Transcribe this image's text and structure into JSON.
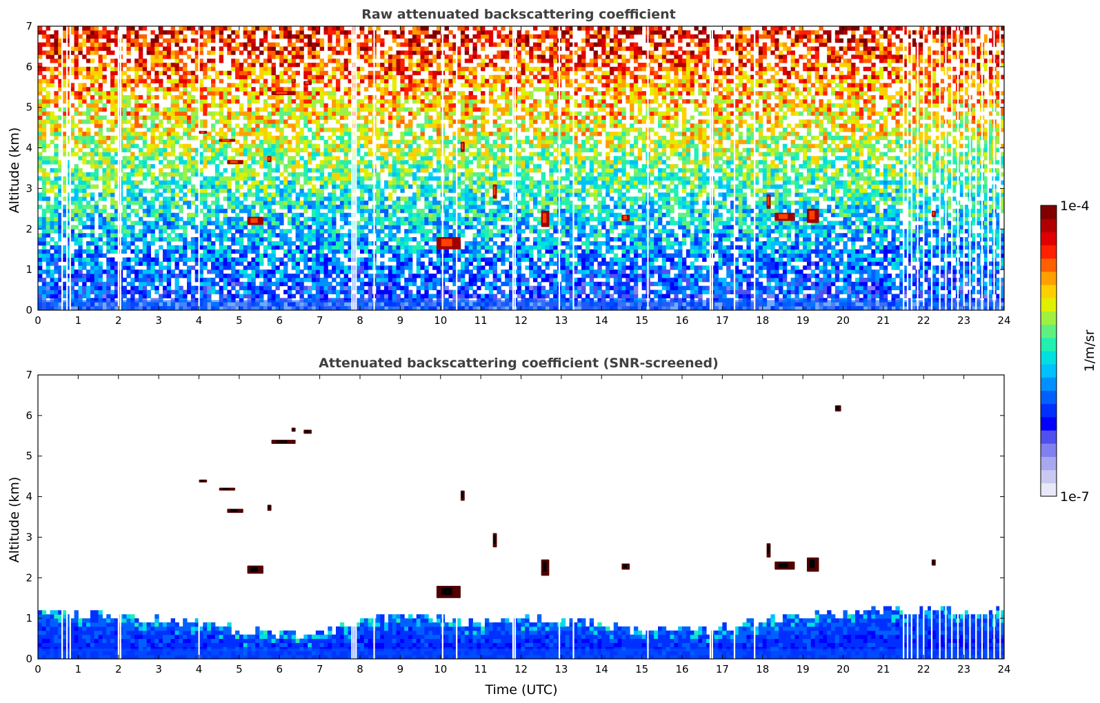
{
  "chart_data": [
    {
      "type": "heatmap",
      "title": "Raw attenuated backscattering coefficient",
      "xlabel": "",
      "ylabel": "Altitude (km)",
      "xlim": [
        0,
        24
      ],
      "ylim": [
        0,
        7
      ],
      "xticks": [
        "0",
        "1",
        "2",
        "3",
        "4",
        "5",
        "6",
        "7",
        "8",
        "9",
        "10",
        "11",
        "12",
        "13",
        "14",
        "15",
        "16",
        "17",
        "18",
        "19",
        "20",
        "21",
        "22",
        "23",
        "24"
      ],
      "yticks": [
        "0",
        "1",
        "2",
        "3",
        "4",
        "5",
        "6",
        "7"
      ],
      "scale": "log",
      "colormap": "jet",
      "value_range": [
        1e-07,
        0.0001
      ],
      "boundary_layer_top_km": 0.5,
      "gap_times_utc": [
        0.6,
        0.72,
        0.8,
        2.0,
        2.05,
        4.0,
        7.8,
        7.85,
        7.9,
        8.35,
        10.05,
        10.4,
        11.8,
        11.85,
        12.95,
        13.3,
        15.15,
        16.7,
        16.75,
        17.3,
        17.8,
        21.5,
        21.6,
        21.7,
        21.85,
        22.0,
        22.2,
        22.4,
        22.55,
        22.7,
        22.85,
        23.0,
        23.15,
        23.3,
        23.45,
        23.6,
        23.75,
        23.9
      ],
      "cloud_features": [
        {
          "t0": 5.2,
          "t1": 5.6,
          "z0": 2.1,
          "z1": 2.3
        },
        {
          "t0": 5.8,
          "t1": 6.4,
          "z0": 5.3,
          "z1": 5.4
        },
        {
          "t0": 6.3,
          "t1": 6.4,
          "z0": 5.6,
          "z1": 5.7
        },
        {
          "t0": 6.6,
          "t1": 6.8,
          "z0": 5.55,
          "z1": 5.65
        },
        {
          "t0": 4.0,
          "t1": 4.2,
          "z0": 4.35,
          "z1": 4.42
        },
        {
          "t0": 4.5,
          "t1": 4.9,
          "z0": 4.15,
          "z1": 4.22
        },
        {
          "t0": 4.7,
          "t1": 5.1,
          "z0": 3.6,
          "z1": 3.7
        },
        {
          "t0": 5.7,
          "t1": 5.8,
          "z0": 3.65,
          "z1": 3.8
        },
        {
          "t0": 9.9,
          "t1": 10.5,
          "z0": 1.5,
          "z1": 1.8
        },
        {
          "t0": 10.5,
          "t1": 10.6,
          "z0": 3.9,
          "z1": 4.15
        },
        {
          "t0": 11.3,
          "t1": 11.4,
          "z0": 2.75,
          "z1": 3.1
        },
        {
          "t0": 12.5,
          "t1": 12.7,
          "z0": 2.05,
          "z1": 2.45
        },
        {
          "t0": 14.5,
          "t1": 14.7,
          "z0": 2.2,
          "z1": 2.35
        },
        {
          "t0": 18.1,
          "t1": 18.2,
          "z0": 2.5,
          "z1": 2.85
        },
        {
          "t0": 18.3,
          "t1": 18.8,
          "z0": 2.2,
          "z1": 2.4
        },
        {
          "t0": 19.1,
          "t1": 19.4,
          "z0": 2.15,
          "z1": 2.5
        },
        {
          "t0": 19.8,
          "t1": 19.95,
          "z0": 6.1,
          "z1": 6.25
        },
        {
          "t0": 22.2,
          "t1": 22.3,
          "z0": 2.3,
          "z1": 2.45
        }
      ]
    },
    {
      "type": "heatmap",
      "title": "Attenuated backscattering coefficient (SNR-screened)",
      "xlabel": "Time (UTC)",
      "ylabel": "Altitude (km)",
      "xlim": [
        0,
        24
      ],
      "ylim": [
        0,
        7
      ],
      "xticks": [
        "0",
        "1",
        "2",
        "3",
        "4",
        "5",
        "6",
        "7",
        "8",
        "9",
        "10",
        "11",
        "12",
        "13",
        "14",
        "15",
        "16",
        "17",
        "18",
        "19",
        "20",
        "21",
        "22",
        "23",
        "24"
      ],
      "yticks": [
        "0",
        "1",
        "2",
        "3",
        "4",
        "5",
        "6",
        "7"
      ],
      "scale": "log",
      "colormap": "jet",
      "value_range": [
        1e-07,
        0.0001
      ],
      "signal_top_km": {
        "t": [
          0,
          1,
          2,
          3,
          4,
          5,
          6,
          7,
          8,
          9,
          10,
          11,
          12,
          13,
          14,
          15,
          16,
          17,
          18,
          19,
          20,
          21,
          22,
          23,
          24
        ],
        "z": [
          1.2,
          1.15,
          1.05,
          0.95,
          0.85,
          0.7,
          0.65,
          0.6,
          0.95,
          1.05,
          1.0,
          0.9,
          1.0,
          0.95,
          0.85,
          0.7,
          0.75,
          0.75,
          0.95,
          1.05,
          1.1,
          1.15,
          1.2,
          1.2,
          1.15
        ]
      },
      "cloud_features": [
        {
          "t0": 5.2,
          "t1": 5.6,
          "z0": 2.1,
          "z1": 2.3
        },
        {
          "t0": 5.8,
          "t1": 6.4,
          "z0": 5.3,
          "z1": 5.4
        },
        {
          "t0": 6.3,
          "t1": 6.4,
          "z0": 5.6,
          "z1": 5.7
        },
        {
          "t0": 6.6,
          "t1": 6.8,
          "z0": 5.55,
          "z1": 5.65
        },
        {
          "t0": 4.0,
          "t1": 4.2,
          "z0": 4.35,
          "z1": 4.42
        },
        {
          "t0": 4.5,
          "t1": 4.9,
          "z0": 4.15,
          "z1": 4.22
        },
        {
          "t0": 4.7,
          "t1": 5.1,
          "z0": 3.6,
          "z1": 3.7
        },
        {
          "t0": 5.7,
          "t1": 5.8,
          "z0": 3.65,
          "z1": 3.8
        },
        {
          "t0": 9.9,
          "t1": 10.5,
          "z0": 1.5,
          "z1": 1.8
        },
        {
          "t0": 10.5,
          "t1": 10.6,
          "z0": 3.9,
          "z1": 4.15
        },
        {
          "t0": 11.3,
          "t1": 11.4,
          "z0": 2.75,
          "z1": 3.1
        },
        {
          "t0": 12.5,
          "t1": 12.7,
          "z0": 2.05,
          "z1": 2.45
        },
        {
          "t0": 14.5,
          "t1": 14.7,
          "z0": 2.2,
          "z1": 2.35
        },
        {
          "t0": 18.1,
          "t1": 18.2,
          "z0": 2.5,
          "z1": 2.85
        },
        {
          "t0": 18.3,
          "t1": 18.8,
          "z0": 2.2,
          "z1": 2.4
        },
        {
          "t0": 19.1,
          "t1": 19.4,
          "z0": 2.15,
          "z1": 2.5
        },
        {
          "t0": 19.8,
          "t1": 19.95,
          "z0": 6.1,
          "z1": 6.25
        },
        {
          "t0": 22.2,
          "t1": 22.3,
          "z0": 2.3,
          "z1": 2.45
        }
      ]
    }
  ],
  "colorbar": {
    "label": "1/m/sr",
    "max_label": "1e-4",
    "min_label": "1e-7",
    "colors": [
      "#e8e8f8",
      "#c8c8f0",
      "#a8a8f0",
      "#8080f0",
      "#5050f0",
      "#0000ff",
      "#0030ff",
      "#0060ff",
      "#0090ff",
      "#00c0ff",
      "#00e0e0",
      "#20f0b0",
      "#60f080",
      "#a0f040",
      "#e0f000",
      "#ffd000",
      "#ffa000",
      "#ff6000",
      "#ff2000",
      "#e00000",
      "#b00000",
      "#800000"
    ]
  }
}
